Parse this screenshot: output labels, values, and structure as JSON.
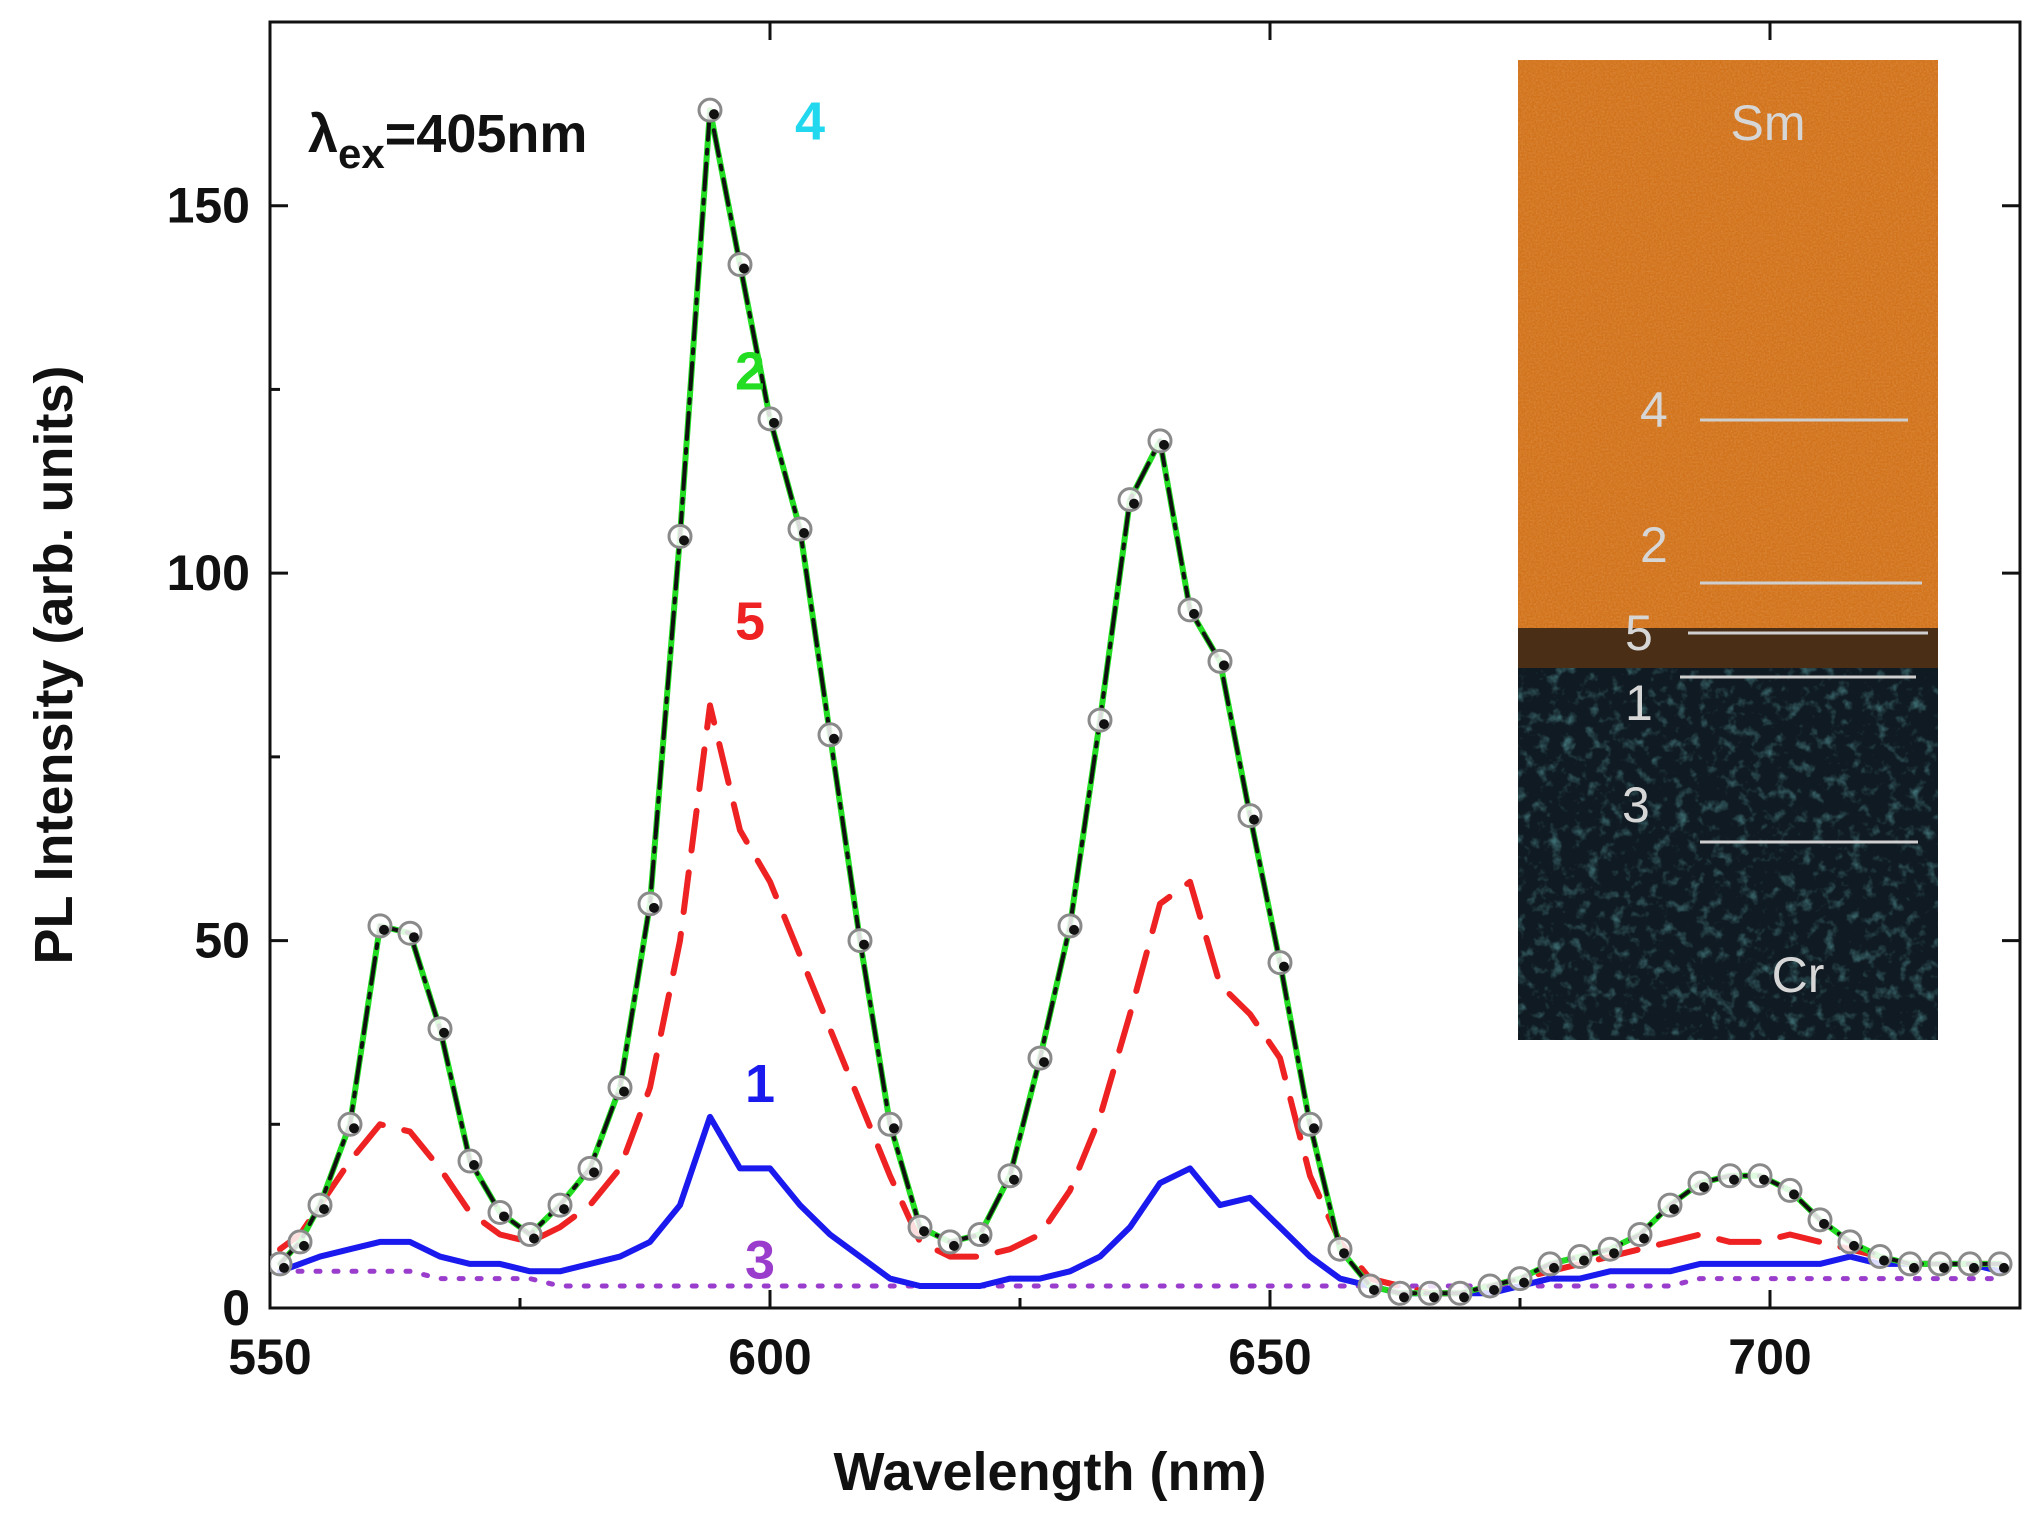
{
  "chart_data": {
    "type": "line",
    "xlabel": "Wavelength (nm)",
    "ylabel": "PL Intensity (arb. units)",
    "xlim": [
      550,
      725
    ],
    "ylim": [
      0,
      175
    ],
    "xticks": [
      550,
      600,
      650,
      700
    ],
    "yticks": [
      0,
      50,
      100,
      150
    ],
    "grid": false,
    "excitation": {
      "prefix": "λ",
      "subscript": "ex",
      "value": "=405nm"
    },
    "x": [
      551,
      553,
      555,
      558,
      561,
      564,
      567,
      570,
      573,
      576,
      579,
      582,
      585,
      588,
      591,
      594,
      597,
      600,
      603,
      606,
      609,
      612,
      615,
      618,
      621,
      624,
      627,
      630,
      633,
      636,
      639,
      642,
      645,
      648,
      651,
      654,
      657,
      660,
      663,
      666,
      669,
      672,
      675,
      678,
      681,
      684,
      687,
      690,
      693,
      696,
      699,
      702,
      705,
      708,
      711,
      714,
      717,
      720,
      723
    ],
    "series": [
      {
        "name": "2",
        "color": "#22dd22",
        "style": "solid",
        "values": [
          6,
          9,
          14,
          25,
          52,
          51,
          38,
          20,
          13,
          10,
          14,
          19,
          30,
          55,
          105,
          163,
          142,
          121,
          106,
          78,
          50,
          25,
          11,
          9,
          10,
          18,
          34,
          52,
          80,
          110,
          118,
          95,
          88,
          67,
          47,
          25,
          8,
          3,
          2,
          2,
          2,
          3,
          4,
          6,
          7,
          8,
          10,
          14,
          17,
          18,
          18,
          16,
          12,
          9,
          7,
          6,
          6,
          6,
          6
        ]
      },
      {
        "name": "4",
        "color": "#111111",
        "style": "dash-dot",
        "values": [
          6,
          9,
          14,
          25,
          52,
          51,
          38,
          20,
          13,
          10,
          14,
          19,
          30,
          55,
          105,
          163,
          142,
          121,
          106,
          78,
          50,
          25,
          11,
          9,
          10,
          18,
          34,
          52,
          80,
          110,
          118,
          95,
          88,
          67,
          47,
          25,
          8,
          3,
          2,
          2,
          2,
          3,
          4,
          6,
          7,
          8,
          10,
          14,
          17,
          18,
          18,
          16,
          12,
          9,
          7,
          6,
          6,
          6,
          6
        ]
      },
      {
        "name": "5",
        "color": "#ee2222",
        "style": "dashed",
        "values": [
          8,
          10,
          14,
          20,
          25,
          24,
          19,
          13,
          10,
          9,
          11,
          14,
          19,
          30,
          50,
          82,
          65,
          58,
          48,
          38,
          28,
          18,
          9,
          7,
          7,
          8,
          10,
          16,
          26,
          40,
          55,
          58,
          44,
          40,
          34,
          18,
          9,
          4,
          3,
          2,
          2,
          3,
          4,
          5,
          6,
          7,
          8,
          9,
          10,
          9,
          9,
          10,
          9,
          8,
          7,
          6,
          6,
          6,
          6
        ]
      },
      {
        "name": "1",
        "color": "#1a1aee",
        "style": "solid",
        "values": [
          5,
          6,
          7,
          8,
          9,
          9,
          7,
          6,
          6,
          5,
          5,
          6,
          7,
          9,
          14,
          26,
          19,
          19,
          14,
          10,
          7,
          4,
          3,
          3,
          3,
          4,
          4,
          5,
          7,
          11,
          17,
          19,
          14,
          15,
          11,
          7,
          4,
          3,
          2,
          2,
          2,
          2,
          3,
          4,
          4,
          5,
          5,
          5,
          6,
          6,
          6,
          6,
          6,
          7,
          6,
          6,
          6,
          6,
          5
        ]
      },
      {
        "name": "3",
        "color": "#9a3dcc",
        "style": "dotted",
        "values": [
          5,
          5,
          5,
          5,
          5,
          5,
          4,
          4,
          4,
          4,
          3,
          3,
          3,
          3,
          3,
          3,
          3,
          3,
          3,
          3,
          3,
          3,
          3,
          3,
          3,
          3,
          3,
          3,
          3,
          3,
          3,
          3,
          3,
          3,
          3,
          3,
          3,
          3,
          3,
          3,
          3,
          3,
          3,
          3,
          3,
          3,
          3,
          3,
          4,
          4,
          4,
          4,
          4,
          4,
          4,
          4,
          4,
          4,
          4
        ]
      }
    ],
    "curve_labels": [
      {
        "text": "4",
        "color": "#22d8ee",
        "x": 604,
        "y": 159
      },
      {
        "text": "2",
        "color": "#22dd22",
        "x": 598,
        "y": 125
      },
      {
        "text": "5",
        "color": "#ee2222",
        "x": 598,
        "y": 91
      },
      {
        "text": "1",
        "color": "#1a1aee",
        "x": 599,
        "y": 28
      },
      {
        "text": "3",
        "color": "#9a3dcc",
        "x": 599,
        "y": 4
      }
    ],
    "inset": {
      "top_label": "Sm",
      "bottom_label": "Cr",
      "top_color": "#d2731c",
      "bottom_color": "#101a22",
      "line_labels": [
        "4",
        "2",
        "5",
        "1",
        "3"
      ]
    }
  }
}
